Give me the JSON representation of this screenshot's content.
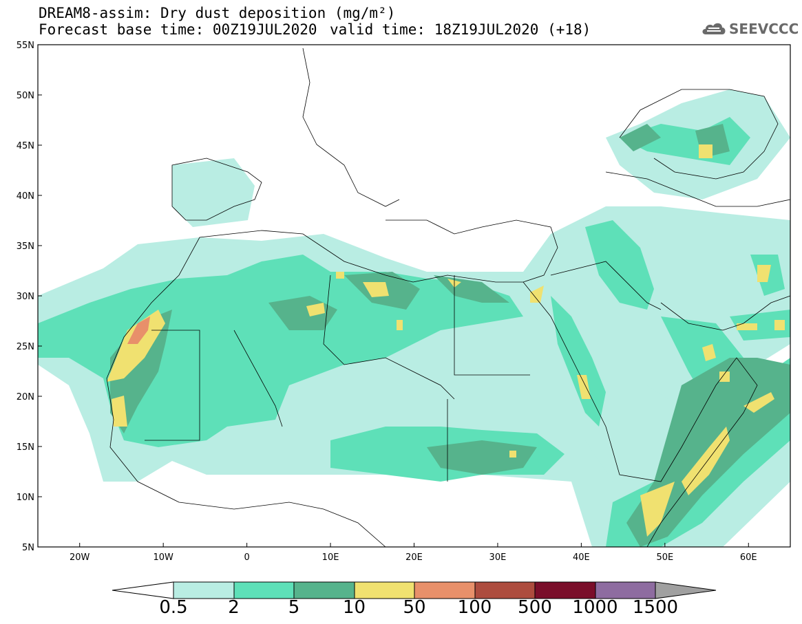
{
  "header": {
    "title": "DREAM8-assim: Dry dust deposition (mg/m²)",
    "base_time": "Forecast base time: 00Z19JUL2020",
    "valid_time": "valid time: 18Z19JUL2020 (+18)",
    "logo_text": "SEEVCCC",
    "logo_icon": "cloud-icon"
  },
  "map": {
    "region": {
      "lon_min": -25,
      "lon_max": 65,
      "lat_min": 5,
      "lat_max": 55
    },
    "y_ticks": [
      "55N",
      "50N",
      "45N",
      "40N",
      "35N",
      "30N",
      "25N",
      "20N",
      "15N",
      "10N",
      "5N"
    ],
    "x_ticks": [
      "20W",
      "10W",
      "0",
      "10E",
      "20E",
      "30E",
      "40E",
      "50E",
      "60E"
    ]
  },
  "colorbar": {
    "levels": [
      "0.5",
      "2",
      "5",
      "10",
      "50",
      "100",
      "500",
      "1000",
      "1500"
    ],
    "colors": [
      "#ffffff",
      "#b9ede3",
      "#5ee0b8",
      "#56b38c",
      "#f0e170",
      "#e8906a",
      "#ad4c3e",
      "#7a0e2a",
      "#8e6ca0",
      "#a0a0a0"
    ]
  }
}
